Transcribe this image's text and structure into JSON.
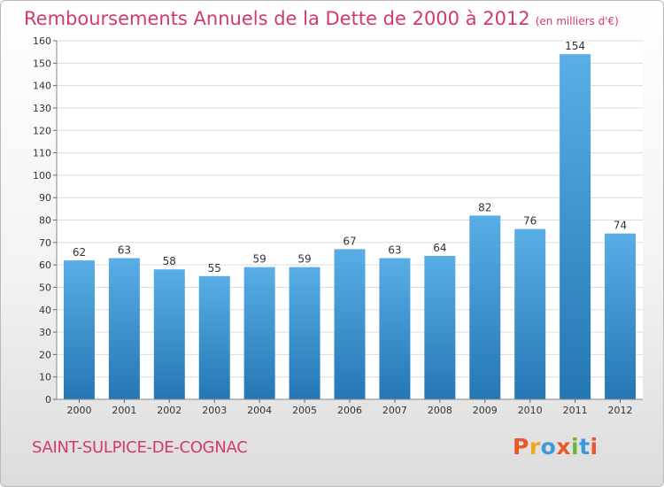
{
  "header": {
    "title": "Remboursements Annuels de la Dette de 2000 à 2012",
    "subtitle": "(en milliers d'€)"
  },
  "footer": {
    "location": "SAINT-SULPICE-DE-COGNAC",
    "brand": "Proxiti",
    "brand_colors": [
      "#e8582a",
      "#f0a81c",
      "#3b9bd8",
      "#e8582a",
      "#72b33a",
      "#3b9bd8",
      "#e8582a"
    ]
  },
  "colors": {
    "bar_light": "#5aaee6",
    "bar_dark": "#2477b3",
    "accent": "#d13a6a"
  },
  "chart_data": {
    "type": "bar",
    "categories": [
      "2000",
      "2001",
      "2002",
      "2003",
      "2004",
      "2005",
      "2006",
      "2007",
      "2008",
      "2009",
      "2010",
      "2011",
      "2012"
    ],
    "values": [
      62,
      63,
      58,
      55,
      59,
      59,
      67,
      63,
      64,
      82,
      76,
      154,
      74
    ],
    "ylim": [
      0,
      160
    ],
    "yticks": [
      0,
      10,
      20,
      30,
      40,
      50,
      60,
      70,
      80,
      90,
      100,
      110,
      120,
      130,
      140,
      150,
      160
    ],
    "grid": true,
    "data_labels": true
  }
}
